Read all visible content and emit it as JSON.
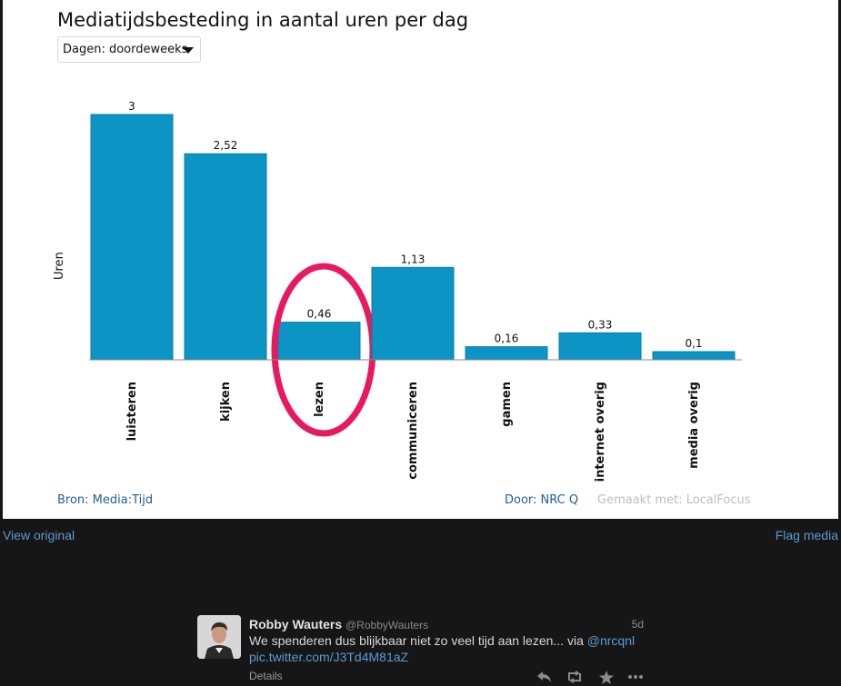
{
  "chart_data": {
    "type": "bar",
    "title": "Mediatijdsbesteding in aantal uren per dag",
    "ylabel": "Uren",
    "xlabel": "",
    "categories": [
      "luisteren",
      "kijken",
      "lezen",
      "communiceren",
      "gamen",
      "internet overig",
      "media overig"
    ],
    "values": [
      3,
      2.52,
      0.46,
      1.13,
      0.16,
      0.33,
      0.1
    ],
    "data_labels": [
      "3",
      "2,52",
      "0,46",
      "1,13",
      "0,16",
      "0,33",
      "0,1"
    ],
    "ylim": [
      0,
      3
    ],
    "bar_color": "#0b94c4",
    "grid": false,
    "highlighted_category": "lezen",
    "highlight_color": "#e8195e"
  },
  "chart_meta": {
    "filter_label": "Dagen: doordeweeks",
    "source": "Bron: Media:Tijd",
    "author": "Door: NRC Q",
    "made_with": "Gemaakt met: LocalFocus"
  },
  "media_links": {
    "view_original": "View original",
    "flag_media": "Flag media"
  },
  "tweet": {
    "author_name": "Robby Wauters",
    "handle": "@RobbyWauters",
    "time": "5d",
    "text": "We spenderen dus blijkbaar niet zo veel tijd aan lezen... via",
    "mention": "@nrcqnl",
    "link": "pic.twitter.com/J3Td4M81aZ",
    "details": "Details",
    "actions": [
      "reply-icon",
      "retweet-icon",
      "favorite-icon",
      "more-icon"
    ]
  },
  "colors": {
    "background": "#161616",
    "link_blue": "#5a9bd4",
    "chart_footer_blue": "#1f5f99"
  }
}
